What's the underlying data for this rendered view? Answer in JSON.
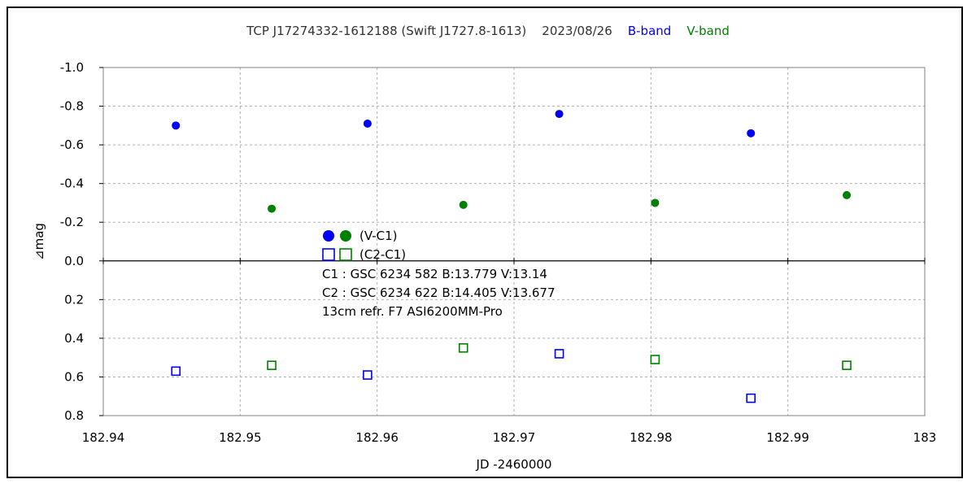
{
  "chart_data": {
    "type": "scatter",
    "title_parts": [
      {
        "text": "TCP J17274332-1612188 (Swift J1727.8-1613)",
        "color": "#333333"
      },
      {
        "text": "2023/08/26",
        "color": "#333333"
      },
      {
        "text": "B-band",
        "color": "#0000ff"
      },
      {
        "text": "V-band",
        "color": "#008000"
      }
    ],
    "xlabel": "JD -2460000",
    "ylabel": "⊿mag",
    "xlim": [
      182.94,
      183.0
    ],
    "ylim": [
      0.8,
      -1.0
    ],
    "y_inverted": true,
    "grid": true,
    "x_ticks": [
      {
        "value": 182.94,
        "label": "182.94"
      },
      {
        "value": 182.95,
        "label": "182.95"
      },
      {
        "value": 182.96,
        "label": "182.96"
      },
      {
        "value": 182.97,
        "label": "182.97"
      },
      {
        "value": 182.98,
        "label": "182.98"
      },
      {
        "value": 182.99,
        "label": "182.99"
      },
      {
        "value": 183.0,
        "label": "183"
      }
    ],
    "y_ticks": [
      {
        "value": -1.0,
        "label": "-1.0"
      },
      {
        "value": -0.8,
        "label": "-0.8"
      },
      {
        "value": -0.6,
        "label": "-0.6"
      },
      {
        "value": -0.4,
        "label": "-0.4"
      },
      {
        "value": -0.2,
        "label": "-0.2"
      },
      {
        "value": 0.0,
        "label": "0.0"
      },
      {
        "value": 0.2,
        "label": "0.2"
      },
      {
        "value": 0.4,
        "label": "0.4"
      },
      {
        "value": 0.6,
        "label": "0.6"
      },
      {
        "value": 0.8,
        "label": "0.8"
      }
    ],
    "series": [
      {
        "key": "b-v-c1",
        "color": "#0000ff",
        "marker": "filled-circle",
        "x": [
          182.9453,
          182.9593,
          182.9733,
          182.9873
        ],
        "y": [
          -0.7,
          -0.71,
          -0.76,
          -0.66
        ]
      },
      {
        "key": "v-v-c1",
        "color": "#008000",
        "marker": "filled-circle",
        "x": [
          182.9523,
          182.9663,
          182.9803,
          182.9943
        ],
        "y": [
          -0.27,
          -0.29,
          -0.3,
          -0.34
        ]
      },
      {
        "key": "b-c2-c1",
        "color": "#0000ff",
        "marker": "open-square",
        "x": [
          182.9453,
          182.9593,
          182.9733,
          182.9873
        ],
        "y": [
          0.57,
          0.59,
          0.48,
          0.71
        ]
      },
      {
        "key": "v-c2-c1",
        "color": "#008000",
        "marker": "open-square",
        "x": [
          182.9523,
          182.9663,
          182.9803,
          182.9943
        ],
        "y": [
          0.54,
          0.45,
          0.51,
          0.54
        ]
      }
    ],
    "legend": [
      {
        "label": "(V-C1)",
        "marker": "filled-circle",
        "colors": [
          "#0000ff",
          "#008000"
        ]
      },
      {
        "label": "(C2-C1)",
        "marker": "open-square",
        "colors": [
          "#0000ff",
          "#008000"
        ]
      }
    ],
    "annotations": [
      "C1 : GSC 6234 582   B:13.779   V:13.14",
      "C2 : GSC 6234 622   B:14.405   V:13.677",
      "13cm refr. F7     ASI6200MM-Pro"
    ]
  }
}
